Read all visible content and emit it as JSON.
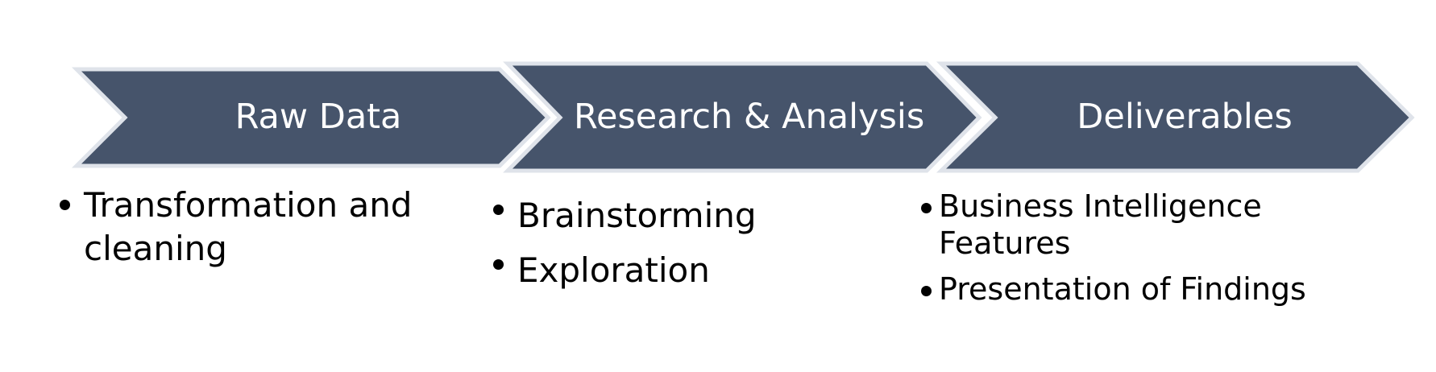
{
  "colors": {
    "chevron_fill": "#46546b",
    "chevron_border": "#dfe3ea",
    "label_text": "#ffffff",
    "bullet_text": "#000000"
  },
  "steps": [
    {
      "label": "Raw Data",
      "bullets": [
        "Transformation  and cleaning"
      ]
    },
    {
      "label": "Research & Analysis",
      "bullets": [
        "Brainstorming",
        "Exploration"
      ]
    },
    {
      "label": "Deliverables",
      "bullets": [
        "Business Intelligence Features",
        "Presentation of Findings"
      ]
    }
  ]
}
